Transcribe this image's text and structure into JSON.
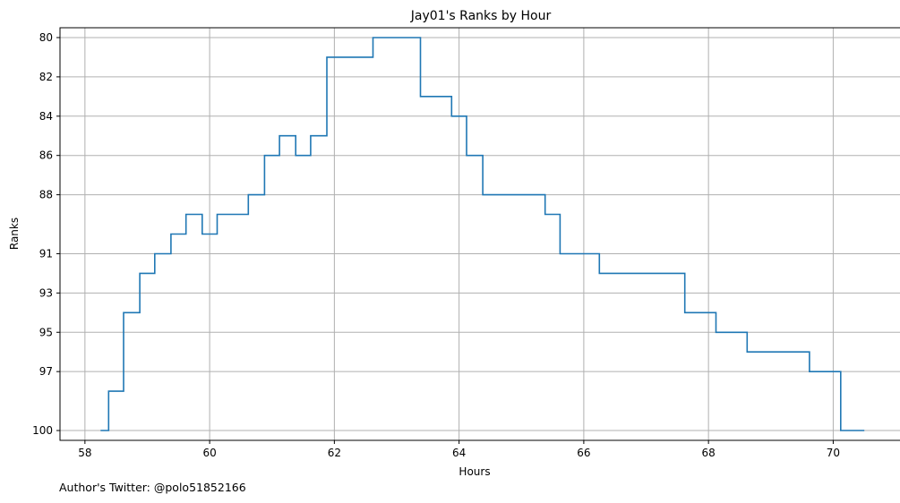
{
  "chart_data": {
    "type": "line",
    "drawstyle": "steps-post",
    "title": "Jay01's Ranks by Hour",
    "xlabel": "Hours",
    "ylabel": "Ranks",
    "xlim": [
      57.6,
      71.1
    ],
    "ylim": [
      100.5,
      79.5
    ],
    "y_inverted": true,
    "grid": true,
    "line_color": "#1f77b4",
    "xticks": [
      58,
      60,
      62,
      64,
      66,
      68,
      70
    ],
    "yticks": [
      80,
      82,
      84,
      86,
      88,
      91,
      93,
      95,
      97,
      100
    ],
    "series": [
      {
        "x": [
          58.25,
          58.38,
          58.62,
          58.88,
          59.12,
          59.38,
          59.62,
          59.88,
          60.12,
          60.62,
          60.88,
          61.12,
          61.38,
          61.62,
          61.88,
          62.62,
          63.38,
          63.88,
          64.12,
          64.38,
          65.38,
          65.62,
          66.25,
          67.62,
          68.12,
          68.62,
          69.62,
          70.12,
          70.5
        ],
        "y": [
          100,
          98,
          94,
          92,
          91,
          90,
          89,
          90,
          89,
          88,
          86,
          85,
          86,
          85,
          81,
          80,
          83,
          84,
          86,
          88,
          89,
          91,
          92,
          94,
          95,
          96,
          97,
          100,
          100
        ]
      }
    ]
  },
  "footer": {
    "author_note": "Author's Twitter: @polo51852166"
  }
}
